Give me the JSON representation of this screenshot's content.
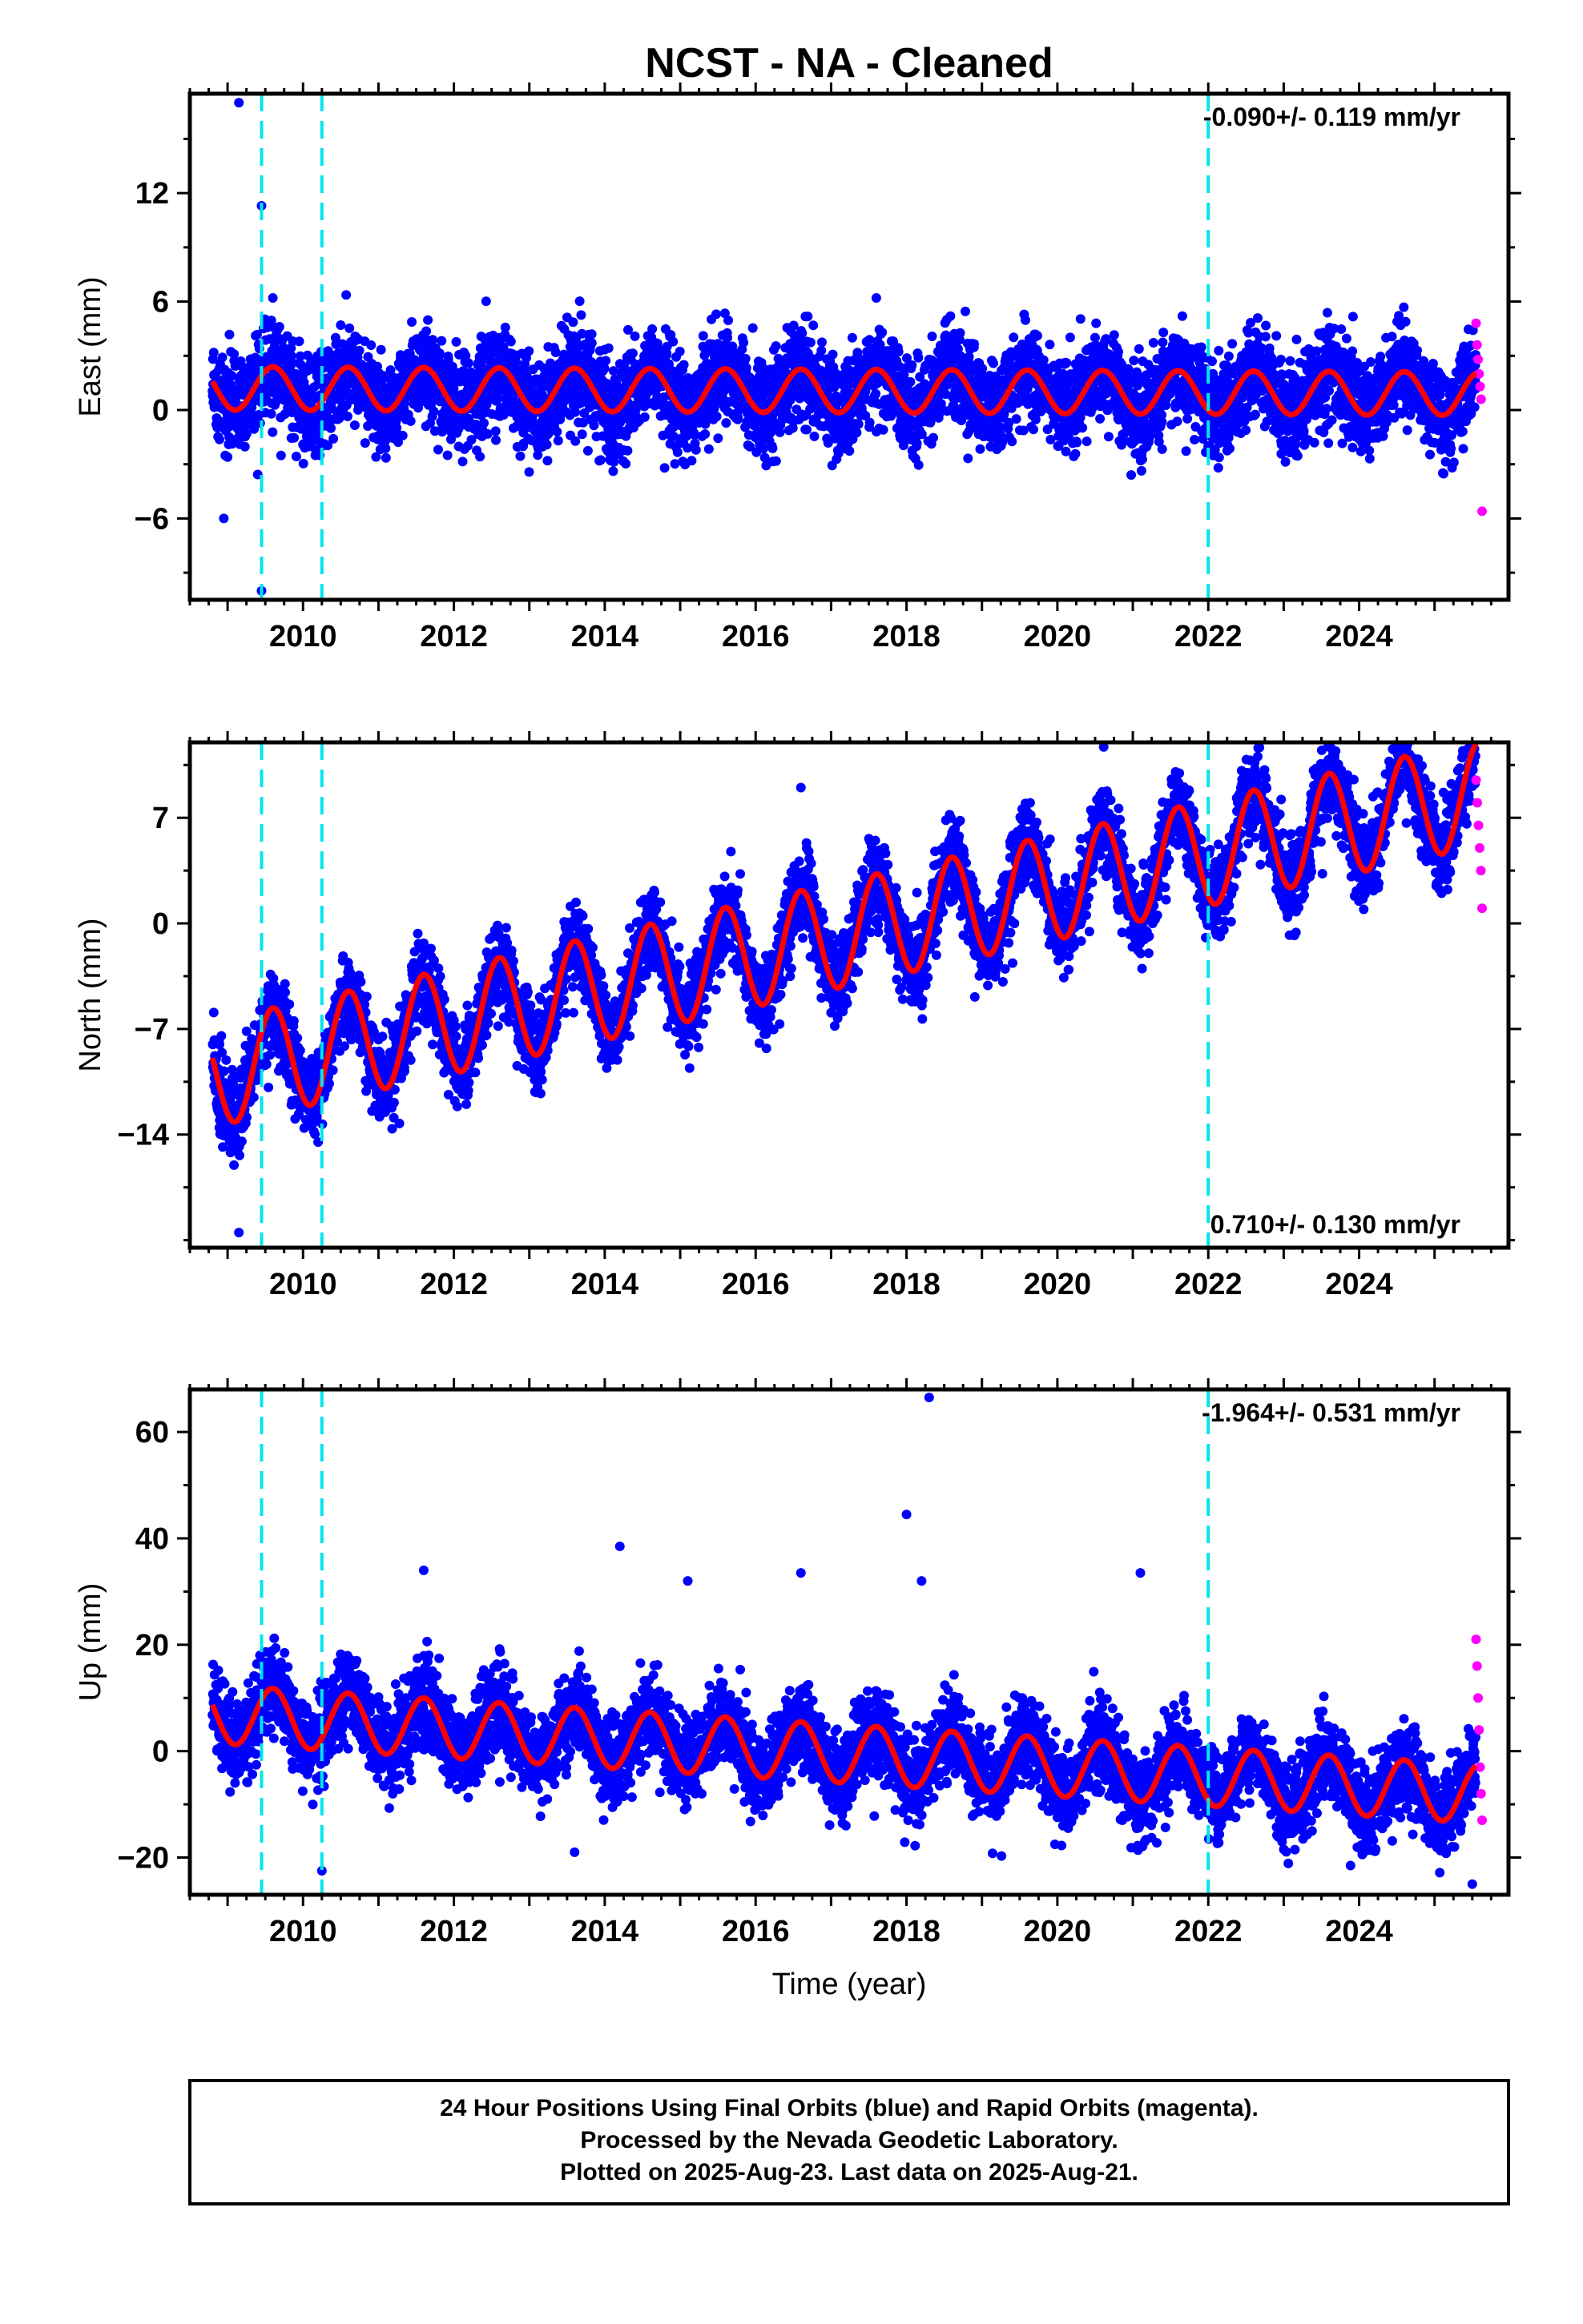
{
  "chart_title": "NCST  - NA - Cleaned",
  "x_axis_label": "Time (year)",
  "footer_lines": [
    "24 Hour Positions Using Final Orbits (blue) and Rapid Orbits (magenta).",
    "Processed by the Nevada Geodetic Laboratory.",
    "Plotted on 2025-Aug-23. Last data on 2025-Aug-21."
  ],
  "colors": {
    "final_orbits": "#0000ff",
    "rapid_orbits": "#ff00ff",
    "model": "#ff0000",
    "events": "#00e5ee"
  },
  "chart_data": [
    {
      "type": "scatter",
      "ylabel": "East (mm)",
      "xlim": [
        2008.5,
        2025.98
      ],
      "ylim": [
        -10.5,
        17.5
      ],
      "x_ticks": [
        2010,
        2012,
        2014,
        2016,
        2018,
        2020,
        2022,
        2024
      ],
      "y_ticks": [
        -6,
        0,
        6,
        12
      ],
      "rate_text": "-0.090+/- 0.119 mm/yr",
      "grid": false,
      "event_lines_x": [
        2009.45,
        2010.25,
        2022.0
      ],
      "series": [
        {
          "name": "Final Orbits (blue)",
          "x_range": [
            2008.8,
            2025.55
          ],
          "trend_mm_per_yr": -0.09,
          "offset": 0.5,
          "seasonal_amplitude": 1.1,
          "scatter_sd": 1.3
        },
        {
          "name": "Rapid Orbits (magenta)",
          "x_range": [
            2025.55,
            2025.63
          ],
          "values": [
            4.8,
            3.6,
            2.8,
            2.0,
            1.3,
            0.6,
            -5.6
          ]
        }
      ],
      "model_line": {
        "approx_start": 1.2,
        "approx_end": 0.9,
        "seasonal_amplitude": 1.2
      },
      "outliers": [
        [
          2009.15,
          17.0
        ],
        [
          2009.45,
          11.3
        ],
        [
          2009.6,
          6.2
        ],
        [
          2008.95,
          -6.0
        ],
        [
          2009.45,
          -10.0
        ],
        [
          2017.6,
          6.2
        ]
      ]
    },
    {
      "type": "scatter",
      "ylabel": "North (mm)",
      "xlim": [
        2008.5,
        2025.98
      ],
      "ylim": [
        -21.5,
        12.0
      ],
      "x_ticks": [
        2010,
        2012,
        2014,
        2016,
        2018,
        2020,
        2022,
        2024
      ],
      "y_ticks": [
        -14,
        -7,
        0,
        7
      ],
      "rate_text": "0.710+/- 0.130 mm/yr",
      "grid": false,
      "event_lines_x": [
        2009.45,
        2010.25,
        2022.0
      ],
      "series": [
        {
          "name": "Final Orbits (blue)",
          "x_range": [
            2008.8,
            2025.55
          ],
          "trend_mm_per_yr": 0.71,
          "seasonal_amplitude": 3.2,
          "scatter_sd": 1.4
        },
        {
          "name": "Rapid Orbits (magenta)",
          "x_range": [
            2025.55,
            2025.63
          ],
          "values": [
            9.5,
            8.0,
            6.5,
            5.0,
            3.5,
            1.0
          ]
        }
      ],
      "model_line": {
        "approx_start": -10.0,
        "approx_end": 8.6,
        "seasonal_amplitude": 3.5
      },
      "outliers": [
        [
          2009.15,
          -20.5
        ],
        [
          2010.2,
          -14.5
        ],
        [
          2016.6,
          9.0
        ],
        [
          2024.5,
          11.5
        ]
      ]
    },
    {
      "type": "scatter",
      "ylabel": "Up (mm)",
      "xlim": [
        2008.5,
        2025.98
      ],
      "ylim": [
        -27.0,
        68.0
      ],
      "x_ticks": [
        2010,
        2012,
        2014,
        2016,
        2018,
        2020,
        2022,
        2024
      ],
      "y_ticks": [
        -20,
        0,
        20,
        40,
        60
      ],
      "rate_text": "-1.964+/- 0.531 mm/yr",
      "grid": false,
      "event_lines_x": [
        2009.45,
        2010.25,
        2022.0
      ],
      "series": [
        {
          "name": "Final Orbits (blue)",
          "x_range": [
            2008.8,
            2025.55
          ],
          "trend_mm_per_yr": -1.964,
          "seasonal_amplitude": 5.0,
          "scatter_sd": 4.0
        },
        {
          "name": "Rapid Orbits (magenta)",
          "x_range": [
            2025.55,
            2025.63
          ],
          "values": [
            21.0,
            16.0,
            10.0,
            4.0,
            -3.0,
            -8.0,
            -13.0
          ]
        }
      ],
      "model_line": {
        "approx_start": 7.0,
        "approx_end": -8.0,
        "seasonal_amplitude": 5.5
      },
      "outliers": [
        [
          2018.3,
          66.5
        ],
        [
          2018.0,
          44.5
        ],
        [
          2018.2,
          32.0
        ],
        [
          2014.2,
          38.5
        ],
        [
          2015.1,
          32.0
        ],
        [
          2016.6,
          33.5
        ],
        [
          2021.1,
          33.5
        ],
        [
          2011.6,
          34.0
        ],
        [
          2010.25,
          -22.5
        ],
        [
          2013.6,
          -19.0
        ],
        [
          2025.5,
          -25.0
        ]
      ]
    }
  ]
}
